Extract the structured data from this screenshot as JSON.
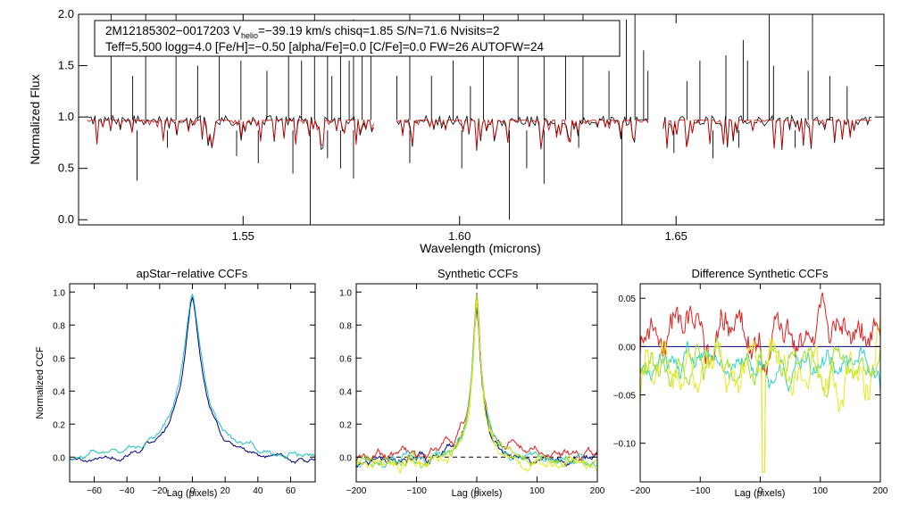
{
  "chart_data": [
    {
      "type": "line",
      "id": "spectrum",
      "xlabel": "Wavelength (microns)",
      "ylabel": "Normalized Flux",
      "xlim": [
        1.512,
        1.698
      ],
      "ylim": [
        -0.05,
        2.0
      ],
      "xticks": [
        1.55,
        1.6,
        1.65
      ],
      "xtick_labels": [
        "1.55",
        "1.60",
        "1.65"
      ],
      "yticks": [
        0.0,
        0.5,
        1.0,
        1.5,
        2.0
      ],
      "ytick_labels": [
        "0.0",
        "0.5",
        "1.0",
        "1.5",
        "2.0"
      ],
      "info_line1_prefix": "2M12185302−0017203  V",
      "info_line1_sub": "helio",
      "info_line1_suffix": "=−39.19 km/s  chisq=1.85  S/N=71.6  Nvisits=2",
      "info_line2": "Teff=5,500 logg=4.0 [Fe/H]=−0.50 [alpha/Fe]=0.0 [C/Fe]=0.0 FW=26 AUTOFW=24",
      "chip_ranges": [
        [
          1.514,
          1.5805
        ],
        [
          1.5855,
          1.644
        ],
        [
          1.647,
          1.6955
        ]
      ],
      "continuum": 0.97,
      "series": [
        {
          "name": "observed",
          "color": "#000000"
        },
        {
          "name": "model",
          "color": "#dd0000"
        }
      ],
      "emission_spikes": [
        {
          "x": 1.5195,
          "y": 2.0
        },
        {
          "x": 1.5245,
          "y": 1.4
        },
        {
          "x": 1.5275,
          "y": 2.0
        },
        {
          "x": 1.5345,
          "y": 2.0
        },
        {
          "x": 1.5395,
          "y": 1.5
        },
        {
          "x": 1.5445,
          "y": 1.6
        },
        {
          "x": 1.5495,
          "y": 1.55
        },
        {
          "x": 1.5555,
          "y": 1.45
        },
        {
          "x": 1.5605,
          "y": 1.7
        },
        {
          "x": 1.5635,
          "y": 1.55
        },
        {
          "x": 1.5665,
          "y": 2.0
        },
        {
          "x": 1.5695,
          "y": 1.65
        },
        {
          "x": 1.5705,
          "y": 1.4
        },
        {
          "x": 1.5725,
          "y": 1.8
        },
        {
          "x": 1.5745,
          "y": 1.55
        },
        {
          "x": 1.5755,
          "y": 1.95
        },
        {
          "x": 1.5775,
          "y": 1.8
        },
        {
          "x": 1.5795,
          "y": 1.6
        },
        {
          "x": 1.5855,
          "y": 1.4
        },
        {
          "x": 1.5885,
          "y": 2.0
        },
        {
          "x": 1.5935,
          "y": 1.4
        },
        {
          "x": 1.5985,
          "y": 1.55
        },
        {
          "x": 1.6025,
          "y": 1.3
        },
        {
          "x": 1.6055,
          "y": 2.0
        },
        {
          "x": 1.6135,
          "y": 2.0
        },
        {
          "x": 1.6195,
          "y": 2.0
        },
        {
          "x": 1.6245,
          "y": 1.6
        },
        {
          "x": 1.6285,
          "y": 2.0
        },
        {
          "x": 1.6345,
          "y": 1.45
        },
        {
          "x": 1.6385,
          "y": 1.95
        },
        {
          "x": 1.6405,
          "y": 2.0
        },
        {
          "x": 1.6425,
          "y": 1.65
        },
        {
          "x": 1.6435,
          "y": 1.45
        },
        {
          "x": 1.6525,
          "y": 1.35
        },
        {
          "x": 1.6555,
          "y": 1.55
        },
        {
          "x": 1.6615,
          "y": 1.6
        },
        {
          "x": 1.6655,
          "y": 1.75
        },
        {
          "x": 1.6665,
          "y": 1.55
        },
        {
          "x": 1.6715,
          "y": 2.0
        },
        {
          "x": 1.6725,
          "y": 1.5
        },
        {
          "x": 1.6805,
          "y": 1.45
        },
        {
          "x": 1.6815,
          "y": 2.0
        },
        {
          "x": 1.6855,
          "y": 1.4
        },
        {
          "x": 1.6895,
          "y": 1.3
        }
      ],
      "absorption_dips": [
        {
          "x": 1.5255,
          "y": 0.38
        },
        {
          "x": 1.5325,
          "y": 0.7
        },
        {
          "x": 1.5485,
          "y": 0.62
        },
        {
          "x": 1.5535,
          "y": 0.55
        },
        {
          "x": 1.5615,
          "y": 0.45
        },
        {
          "x": 1.5655,
          "y": -0.05
        },
        {
          "x": 1.5695,
          "y": 0.6
        },
        {
          "x": 1.5725,
          "y": 0.5
        },
        {
          "x": 1.5755,
          "y": 0.4
        },
        {
          "x": 1.5885,
          "y": 0.55
        },
        {
          "x": 1.6005,
          "y": 0.5
        },
        {
          "x": 1.6115,
          "y": 0.0
        },
        {
          "x": 1.6155,
          "y": 0.5
        },
        {
          "x": 1.6195,
          "y": 0.35
        },
        {
          "x": 1.6275,
          "y": 0.7
        },
        {
          "x": 1.6375,
          "y": -0.05
        },
        {
          "x": 1.6495,
          "y": 0.65
        },
        {
          "x": 1.6585,
          "y": 0.6
        },
        {
          "x": 1.6645,
          "y": 0.7
        },
        {
          "x": 1.6775,
          "y": 0.7
        }
      ]
    },
    {
      "type": "line",
      "id": "apstar",
      "title": "apStar−relative CCFs",
      "xlabel": "Lag (pixels)",
      "ylabel": "Normalized CCF",
      "xlim": [
        -75,
        75
      ],
      "ylim": [
        -0.15,
        1.05
      ],
      "xticks": [
        -60,
        -40,
        -20,
        0,
        20,
        40,
        60
      ],
      "xtick_labels": [
        "−60",
        "−40",
        "−20",
        "0",
        "20",
        "40",
        "60"
      ],
      "yticks": [
        0.0,
        0.2,
        0.4,
        0.6,
        0.8,
        1.0
      ],
      "ytick_labels": [
        "0.0",
        "0.2",
        "0.4",
        "0.6",
        "0.8",
        "1.0"
      ],
      "series": [
        {
          "name": "ccf-1",
          "color": "#000080",
          "base": -0.04,
          "peak": 0.97,
          "width": 7,
          "noise": 0.018
        },
        {
          "name": "ccf-2",
          "color": "#20c0c0",
          "base": -0.02,
          "peak": 1.0,
          "width": 7.5,
          "noise": 0.02
        }
      ]
    },
    {
      "type": "line",
      "id": "synthetic",
      "title": "Synthetic CCFs",
      "xlabel": "Lag (pixels)",
      "xlim": [
        -200,
        200
      ],
      "ylim": [
        -0.15,
        1.05
      ],
      "xticks": [
        -200,
        -100,
        0,
        100,
        200
      ],
      "xtick_labels": [
        "−200",
        "−100",
        "0",
        "100",
        "200"
      ],
      "yticks": [
        0.0,
        0.2,
        0.4,
        0.6,
        0.8,
        1.0
      ],
      "ytick_labels": [
        "0.0",
        "0.2",
        "0.4",
        "0.6",
        "0.8",
        "1.0"
      ],
      "zero_line": 0.0,
      "series": [
        {
          "name": "model-1",
          "color": "#000080",
          "base": -0.02,
          "peak": 0.95,
          "width": 9,
          "noise": 0.03
        },
        {
          "name": "model-2",
          "color": "#dd2222",
          "base": 0.0,
          "peak": 1.0,
          "width": 9,
          "noise": 0.035
        },
        {
          "name": "model-3",
          "color": "#30d0d0",
          "base": -0.03,
          "peak": 0.97,
          "width": 9,
          "noise": 0.03
        },
        {
          "name": "model-4",
          "color": "#a0e020",
          "base": -0.04,
          "peak": 0.96,
          "width": 9,
          "noise": 0.035
        },
        {
          "name": "model-5",
          "color": "#e8e820",
          "base": -0.05,
          "peak": 0.94,
          "width": 9,
          "noise": 0.04
        }
      ]
    },
    {
      "type": "line",
      "id": "difference",
      "title": "Difference Synthetic CCFs",
      "xlabel": "Lag (pixels)",
      "xlim": [
        -200,
        200
      ],
      "ylim": [
        -0.14,
        0.065
      ],
      "xticks": [
        -200,
        -100,
        0,
        100,
        200
      ],
      "xtick_labels": [
        "−200",
        "−100",
        "0",
        "100",
        "200"
      ],
      "yticks": [
        0.05,
        0.0,
        -0.05,
        -0.1
      ],
      "ytick_labels": [
        "0.05",
        "0.00",
        "−0.05",
        "−0.10"
      ],
      "series": [
        {
          "name": "diff-1",
          "color": "#000080",
          "mean": 0.0,
          "amp": 0.0
        },
        {
          "name": "diff-2",
          "color": "#dd2222",
          "mean": 0.012,
          "amp": 0.035
        },
        {
          "name": "diff-3",
          "color": "#30d0d0",
          "mean": -0.02,
          "amp": 0.02
        },
        {
          "name": "diff-4",
          "color": "#a0e020",
          "mean": -0.02,
          "amp": 0.025
        },
        {
          "name": "diff-5",
          "color": "#e8e820",
          "mean": -0.025,
          "amp": 0.035
        }
      ]
    }
  ]
}
